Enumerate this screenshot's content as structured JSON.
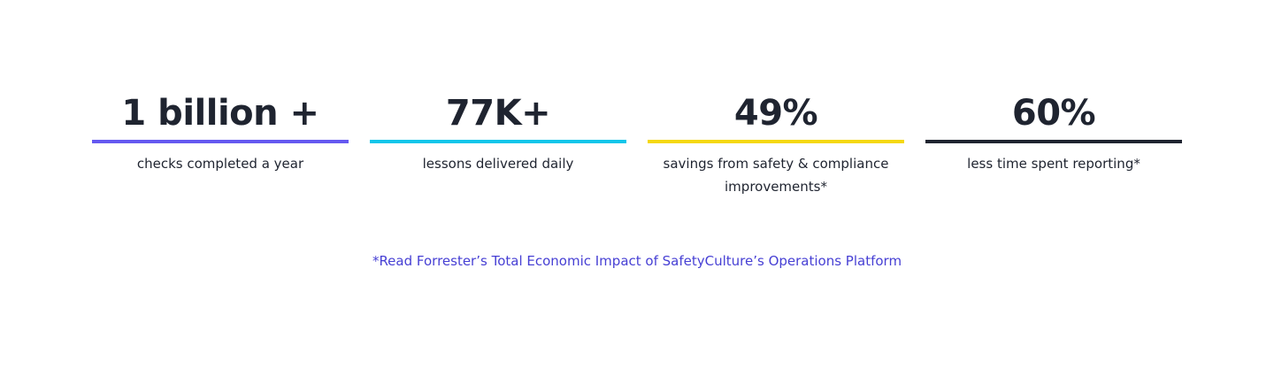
{
  "stats": [
    {
      "value": "1 billion +",
      "label": "checks completed a year",
      "bar_color": "#6559f0"
    },
    {
      "value": "77K+",
      "label": "lessons delivered daily",
      "bar_color": "#12c6ea"
    },
    {
      "value": "49%",
      "label": "savings from safety & compliance improvements*",
      "bar_color": "#f5d813"
    },
    {
      "value": "60%",
      "label": "less time spent reporting*",
      "bar_color": "#1f2430"
    }
  ],
  "footnote": {
    "link_text": "*Read Forrester’s Total Economic Impact of SafetyCulture’s Operations Platform",
    "color": "#4740d4"
  }
}
